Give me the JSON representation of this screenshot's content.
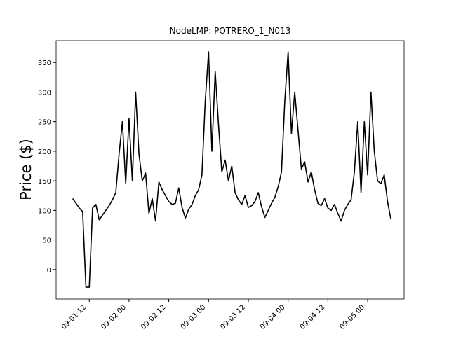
{
  "chart_data": {
    "type": "line",
    "title": "NodeLMP: POTRERO_1_N013",
    "y_label": "Price ($)",
    "x": [
      "09-01 07",
      "09-01 08",
      "09-01 09",
      "09-01 10",
      "09-01 11",
      "09-01 12",
      "09-01 13",
      "09-01 14",
      "09-01 15",
      "09-01 16",
      "09-01 17",
      "09-01 18",
      "09-01 19",
      "09-01 20",
      "09-01 21",
      "09-01 22",
      "09-01 23",
      "09-02 00",
      "09-02 01",
      "09-02 02",
      "09-02 03",
      "09-02 04",
      "09-02 05",
      "09-02 06",
      "09-02 07",
      "09-02 08",
      "09-02 09",
      "09-02 10",
      "09-02 11",
      "09-02 12",
      "09-02 13",
      "09-02 14",
      "09-02 15",
      "09-02 16",
      "09-02 17",
      "09-02 18",
      "09-02 19",
      "09-02 20",
      "09-02 21",
      "09-02 22",
      "09-02 23",
      "09-03 00",
      "09-03 01",
      "09-03 02",
      "09-03 03",
      "09-03 04",
      "09-03 05",
      "09-03 06",
      "09-03 07",
      "09-03 08",
      "09-03 09",
      "09-03 10",
      "09-03 11",
      "09-03 12",
      "09-03 13",
      "09-03 14",
      "09-03 15",
      "09-03 16",
      "09-03 17",
      "09-03 18",
      "09-03 19",
      "09-03 20",
      "09-03 21",
      "09-03 22",
      "09-03 23",
      "09-04 00",
      "09-04 01",
      "09-04 02",
      "09-04 03",
      "09-04 04",
      "09-04 05",
      "09-04 06",
      "09-04 07",
      "09-04 08",
      "09-04 09",
      "09-04 10",
      "09-04 11",
      "09-04 12",
      "09-04 13",
      "09-04 14",
      "09-04 15",
      "09-04 16",
      "09-04 17",
      "09-04 18",
      "09-04 19",
      "09-04 20",
      "09-04 21",
      "09-04 22",
      "09-04 23",
      "09-05 00",
      "09-05 01",
      "09-05 02",
      "09-05 03",
      "09-05 04",
      "09-05 05",
      "09-05 06",
      "09-05 07"
    ],
    "series": [
      {
        "color": "#000000",
        "values": [
          120,
          112,
          104,
          98,
          -30,
          -30,
          104,
          110,
          84,
          92,
          100,
          108,
          118,
          130,
          195,
          250,
          145,
          255,
          150,
          300,
          195,
          150,
          163,
          95,
          120,
          82,
          148,
          135,
          125,
          115,
          110,
          112,
          138,
          105,
          87,
          102,
          110,
          125,
          135,
          160,
          285,
          368,
          200,
          335,
          245,
          165,
          185,
          150,
          175,
          130,
          118,
          110,
          125,
          105,
          108,
          115,
          130,
          106,
          88,
          100,
          112,
          122,
          140,
          165,
          285,
          368,
          230,
          300,
          235,
          170,
          182,
          148,
          165,
          135,
          112,
          108,
          120,
          104,
          100,
          110,
          95,
          82,
          100,
          110,
          118,
          165,
          250,
          130,
          250,
          160,
          300,
          200,
          150,
          145,
          160,
          115,
          85
        ]
      }
    ],
    "xlim": [
      "09-01 02",
      "09-05 11"
    ],
    "xticks": [
      "09-01 12",
      "09-02 00",
      "09-02 12",
      "09-03 00",
      "09-03 12",
      "09-04 00",
      "09-04 12",
      "09-05 00"
    ],
    "ylim": [
      -50,
      387
    ],
    "yticks": [
      0,
      50,
      100,
      150,
      200,
      250,
      300,
      350
    ]
  }
}
